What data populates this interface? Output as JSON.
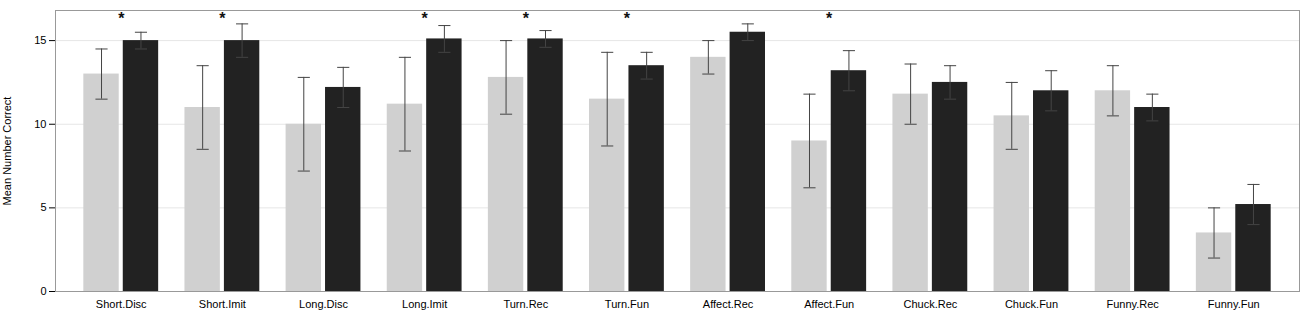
{
  "chart_data": {
    "type": "bar",
    "categories": [
      "Short.Disc",
      "Short.Imit",
      "Long.Disc",
      "Long.Imit",
      "Turn.Rec",
      "Turn.Fun",
      "Affect.Rec",
      "Affect.Fun",
      "Chuck.Rec",
      "Chuck.Fun",
      "Funny.Rec",
      "Funny.Fun"
    ],
    "series": [
      {
        "color": "#d0d0d0",
        "values": [
          13.0,
          11.0,
          10.0,
          11.2,
          12.8,
          11.5,
          14.0,
          9.0,
          11.8,
          10.5,
          12.0,
          3.5
        ],
        "errors": [
          1.5,
          2.5,
          2.8,
          2.8,
          2.2,
          2.8,
          1.0,
          2.8,
          1.8,
          2.0,
          1.5,
          1.5
        ]
      },
      {
        "color": "#222222",
        "values": [
          15.0,
          15.0,
          12.2,
          15.1,
          15.1,
          13.5,
          15.5,
          13.2,
          12.5,
          12.0,
          11.0,
          5.2
        ],
        "errors": [
          0.5,
          1.0,
          1.2,
          0.8,
          0.5,
          0.8,
          0.5,
          1.2,
          1.0,
          1.2,
          0.8,
          1.2
        ]
      }
    ],
    "significance": [
      true,
      true,
      false,
      true,
      true,
      true,
      false,
      true,
      false,
      false,
      false,
      false
    ],
    "annotation": "*",
    "ylabel": "Mean Number Correct",
    "ylim": [
      0,
      16.8
    ],
    "yticks": [
      0,
      5,
      10,
      15
    ],
    "grid": true
  }
}
